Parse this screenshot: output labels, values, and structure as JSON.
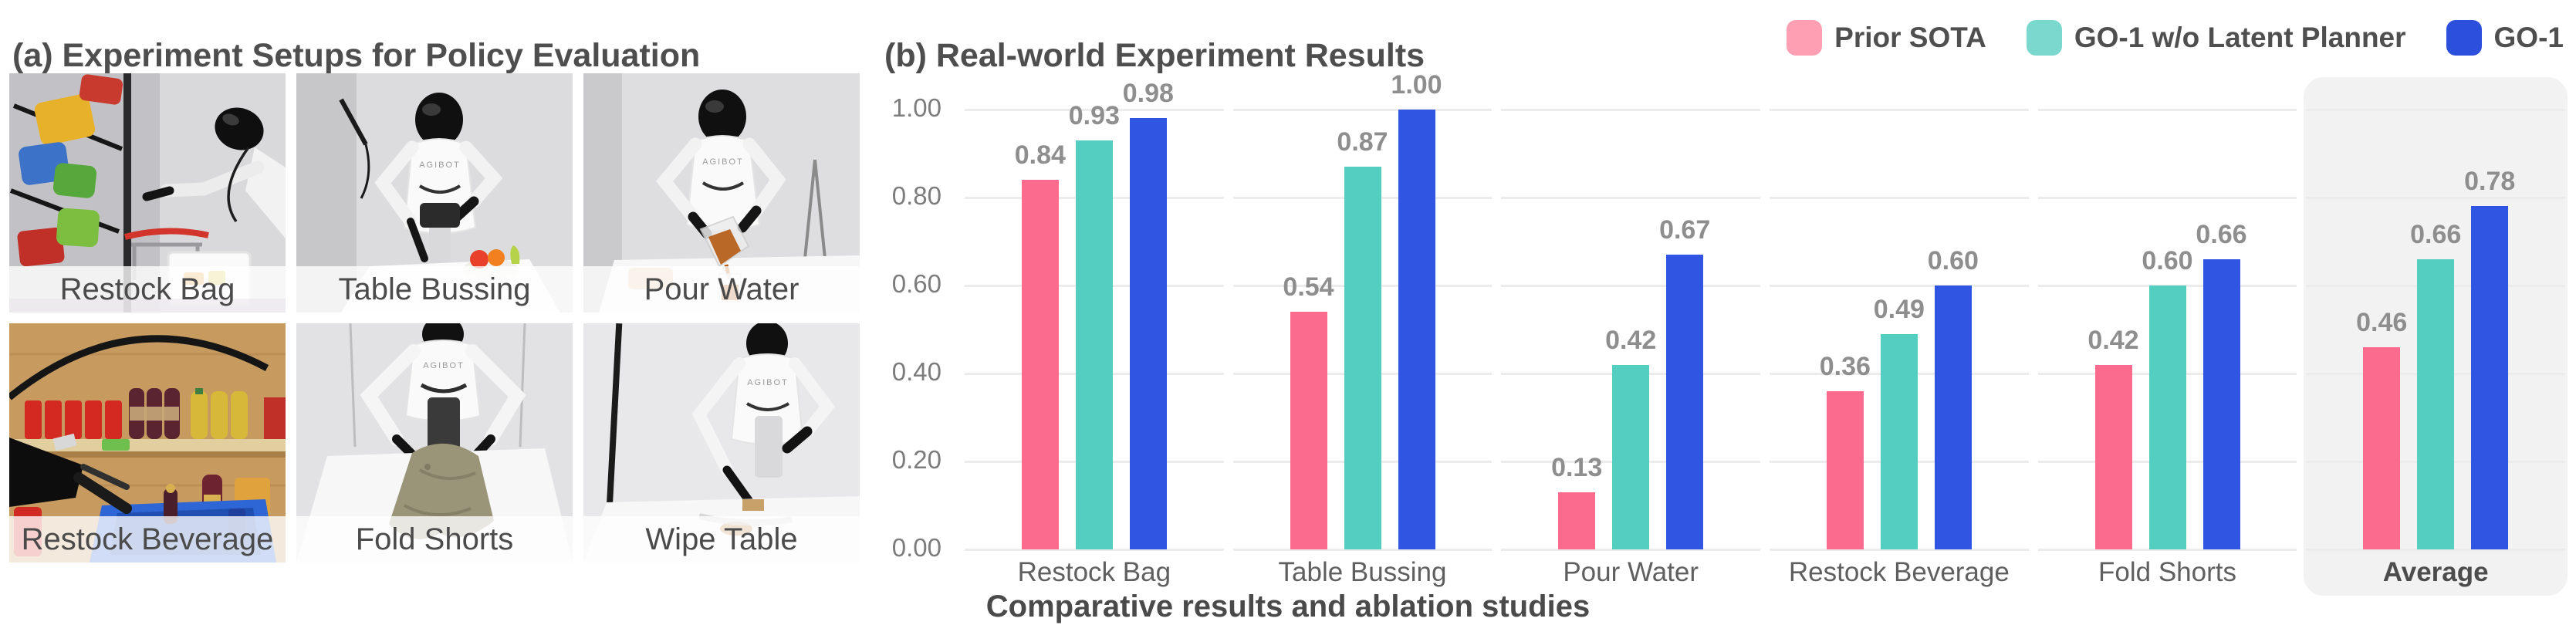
{
  "panel_a": {
    "title": "(a) Experiment Setups for Policy Evaluation",
    "robot_chest_label": "AGIBOT",
    "setups": [
      {
        "label": "Restock Bag"
      },
      {
        "label": "Table Bussing"
      },
      {
        "label": "Pour Water"
      },
      {
        "label": "Restock Beverage"
      },
      {
        "label": "Fold Shorts"
      },
      {
        "label": "Wipe Table"
      }
    ]
  },
  "panel_b": {
    "title": "(b) Real-world Experiment Results",
    "caption": "Comparative results and ablation studies",
    "legend": [
      {
        "label": "Prior SOTA",
        "swatch_color": "#FF9FB4"
      },
      {
        "label": "GO-1 w/o Latent Planner",
        "swatch_color": "#7BD8CE"
      },
      {
        "label": "GO-1",
        "swatch_color": "#2C50DC"
      }
    ]
  },
  "chart_data": {
    "type": "bar",
    "title": "(b) Real-world Experiment Results",
    "categories": [
      "Restock Bag",
      "Table Bussing",
      "Pour Water",
      "Restock Beverage",
      "Fold Shorts",
      "Average"
    ],
    "series": [
      {
        "name": "Prior SOTA",
        "color": "#FB6B8D",
        "values": [
          0.84,
          0.54,
          0.13,
          0.36,
          0.42,
          0.46
        ]
      },
      {
        "name": "GO-1 w/o Latent Planner",
        "color": "#55CEC2",
        "values": [
          0.93,
          0.87,
          0.42,
          0.49,
          0.6,
          0.66
        ]
      },
      {
        "name": "GO-1",
        "color": "#3155E3",
        "values": [
          0.98,
          1.0,
          0.67,
          0.6,
          0.66,
          0.78
        ]
      }
    ],
    "xlabel": "",
    "ylabel": "",
    "ylim": [
      0,
      1.0
    ],
    "yticks": [
      0,
      0.2,
      0.4,
      0.6,
      0.8,
      1.0
    ],
    "ytick_labels": [
      "0.00",
      "0.20",
      "0.40",
      "0.60",
      "0.80",
      "1.00"
    ],
    "grid": true,
    "grid_color": "#ECECEC",
    "legend_position": "top-right",
    "highlighted_category": "Average",
    "highlight_color": "#F2F2F2",
    "value_labels": true,
    "caption": "Comparative results and ablation studies"
  }
}
